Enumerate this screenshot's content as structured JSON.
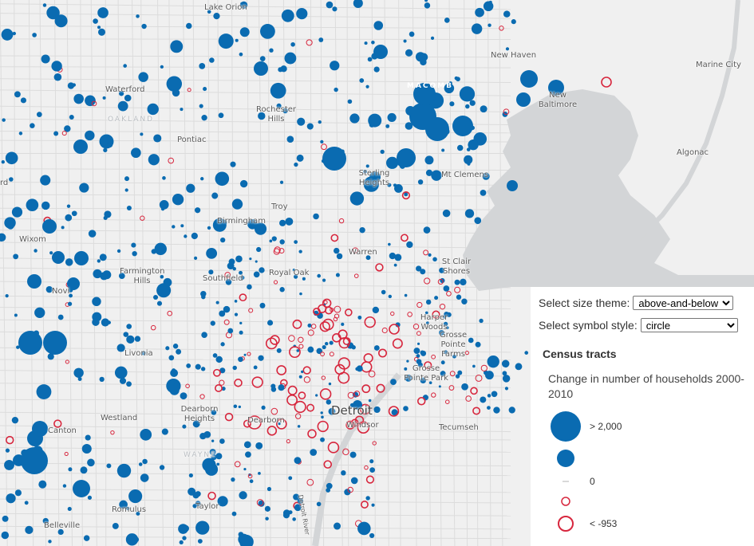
{
  "map": {
    "colors": {
      "increase": "#0a6bb1",
      "decrease": "#d7263d",
      "water": "#d3d5d7",
      "land": "#f0f0f0"
    },
    "labels": [
      "Lake Orion",
      "Waterford",
      "OAKLAND",
      "Pontiac",
      "Rochester Hills",
      "Troy",
      "Birmingham",
      "Sterling Heights",
      "MACOMB",
      "New Haven",
      "New Baltimore",
      "Marine City",
      "Mt Clemens",
      "Algonac",
      "Wixom",
      "Farmington Hills",
      "Southfield",
      "Royal Oak",
      "Warren",
      "St Clair Shores",
      "Novi",
      "Livonia",
      "Harper Woods",
      "Grosse Pointe Farms",
      "Grosse Pointe Park",
      "Westland",
      "Dearborn Heights",
      "Dearborn",
      "Detroit",
      "Windsor",
      "Tecumseh",
      "Canton",
      "WAYNE",
      "Romulus",
      "Taylor",
      "Belleville",
      "Detroit River",
      "rd"
    ]
  },
  "panel": {
    "size_theme_label": "Select size theme:",
    "size_theme_value": "above-and-below",
    "symbol_style_label": "Select symbol style:",
    "symbol_style_value": "circle",
    "layer_title": "Census tracts",
    "field_title": "Change in number of households 2000-2010",
    "legend": [
      {
        "label": "> 2,000",
        "type": "increase-large"
      },
      {
        "label": "",
        "type": "increase-medium"
      },
      {
        "label": "0",
        "type": "zero"
      },
      {
        "label": "",
        "type": "decrease-small"
      },
      {
        "label": "< -953",
        "type": "decrease-large"
      }
    ]
  }
}
